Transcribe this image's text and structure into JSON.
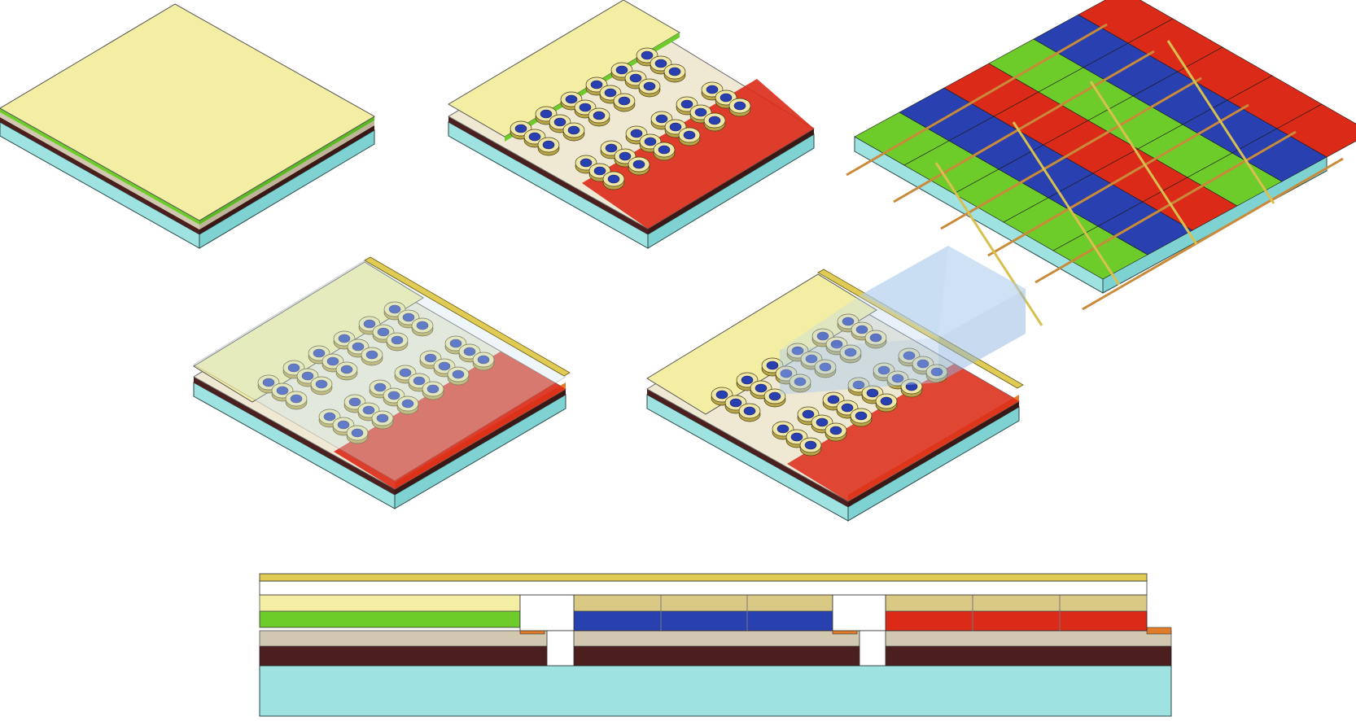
{
  "figure": {
    "panels": [
      {
        "id": "stack",
        "kind": "isometric-layer-stack"
      },
      {
        "id": "rings",
        "kind": "isometric-ring-array"
      },
      {
        "id": "rgb-grid",
        "kind": "isometric-rgb-stripe-matrix"
      },
      {
        "id": "encapsulated",
        "kind": "isometric-encapsulated-array"
      },
      {
        "id": "zoom",
        "kind": "isometric-array-with-zoom-window"
      },
      {
        "id": "section",
        "kind": "cross-section"
      }
    ],
    "colors": {
      "substrate": "#9fe2e2",
      "dark_layer": "#4a1f1d",
      "tan_layer": "#d2c8b0",
      "green": "#6dcc2a",
      "yellow": "#f3eea4",
      "gold": "#e0cc55",
      "blue": "#2840b0",
      "red": "#dc2a18",
      "orange": "#e07c2a",
      "white_gap": "#ffffff",
      "window": "#a8c8ec"
    },
    "rgb_rows": [
      [
        "green",
        "blue",
        "red"
      ],
      [
        "green",
        "blue",
        "red"
      ],
      [
        "green",
        "blue",
        "red"
      ],
      [
        "green",
        "blue",
        "red"
      ],
      [
        "green",
        "blue",
        "red"
      ]
    ]
  }
}
